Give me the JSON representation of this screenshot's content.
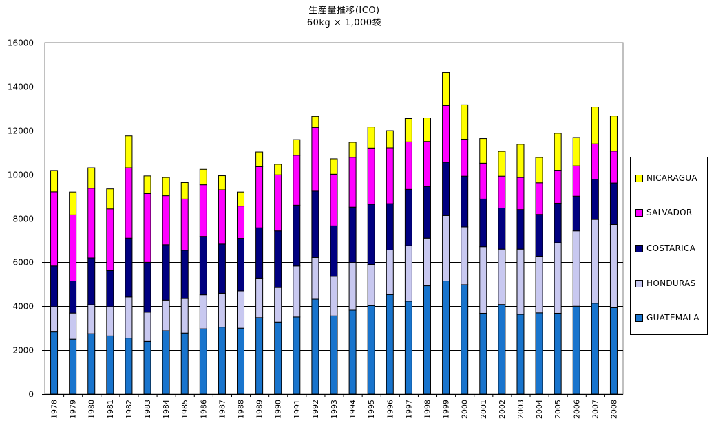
{
  "chart_data": {
    "type": "bar",
    "stacked": true,
    "title": "生産量推移(ICO)",
    "subtitle": "60kg × 1,000袋",
    "xlabel": "",
    "ylabel": "",
    "ylim": [
      0,
      16000
    ],
    "yticks": [
      0,
      2000,
      4000,
      6000,
      8000,
      10000,
      12000,
      14000,
      16000
    ],
    "grid": true,
    "legend_position": "right",
    "categories": [
      "1978",
      "1979",
      "1980",
      "1981",
      "1982",
      "1983",
      "1984",
      "1985",
      "1986",
      "1987",
      "1988",
      "1989",
      "1990",
      "1991",
      "1992",
      "1993",
      "1994",
      "1995",
      "1996",
      "1997",
      "1998",
      "1999",
      "2000",
      "2001",
      "2002",
      "2003",
      "2004",
      "2005",
      "2006",
      "2007",
      "2008"
    ],
    "series": [
      {
        "name": "GUATEMALA",
        "color": "#1874CD",
        "values": [
          2830,
          2500,
          2750,
          2650,
          2550,
          2400,
          2880,
          2780,
          2970,
          3050,
          3000,
          3480,
          3280,
          3510,
          4320,
          3560,
          3820,
          4030,
          4530,
          4230,
          4930,
          5150,
          4980,
          3680,
          4080,
          3630,
          3700,
          3680,
          4000,
          4140,
          3930
        ]
      },
      {
        "name": "HONDURAS",
        "color": "#C8C8F0",
        "values": [
          1150,
          1190,
          1320,
          1330,
          1870,
          1330,
          1400,
          1570,
          1550,
          1540,
          1700,
          1800,
          1570,
          2320,
          1900,
          1800,
          2170,
          1870,
          2030,
          2530,
          2170,
          2980,
          2630,
          3030,
          2520,
          2970,
          2580,
          3210,
          3430,
          3810,
          3790
        ]
      },
      {
        "name": "COSTARICA",
        "color": "#000080",
        "values": [
          1850,
          1460,
          2130,
          1640,
          2680,
          2270,
          2520,
          2200,
          2660,
          2240,
          2390,
          2290,
          2580,
          2770,
          3020,
          2300,
          2520,
          2740,
          2110,
          2560,
          2350,
          2420,
          2310,
          2170,
          1870,
          1800,
          1900,
          1800,
          1580,
          1830,
          1890
        ]
      },
      {
        "name": "SALVADOR",
        "color": "#FF00FF",
        "values": [
          3380,
          3010,
          3170,
          2810,
          3200,
          3130,
          2230,
          2330,
          2350,
          2470,
          1470,
          2780,
          2550,
          2270,
          2900,
          2350,
          2270,
          2560,
          2540,
          2160,
          2050,
          2590,
          1680,
          1630,
          1450,
          1460,
          1440,
          1500,
          1380,
          1610,
          1450
        ]
      },
      {
        "name": "NICARAGUA",
        "color": "#FFFF00",
        "values": [
          970,
          1040,
          930,
          910,
          1450,
          800,
          830,
          750,
          700,
          640,
          640,
          670,
          480,
          710,
          500,
          700,
          680,
          960,
          780,
          1060,
          1070,
          1500,
          1570,
          1120,
          1130,
          1510,
          1150,
          1680,
          1290,
          1680,
          1600
        ]
      }
    ]
  }
}
